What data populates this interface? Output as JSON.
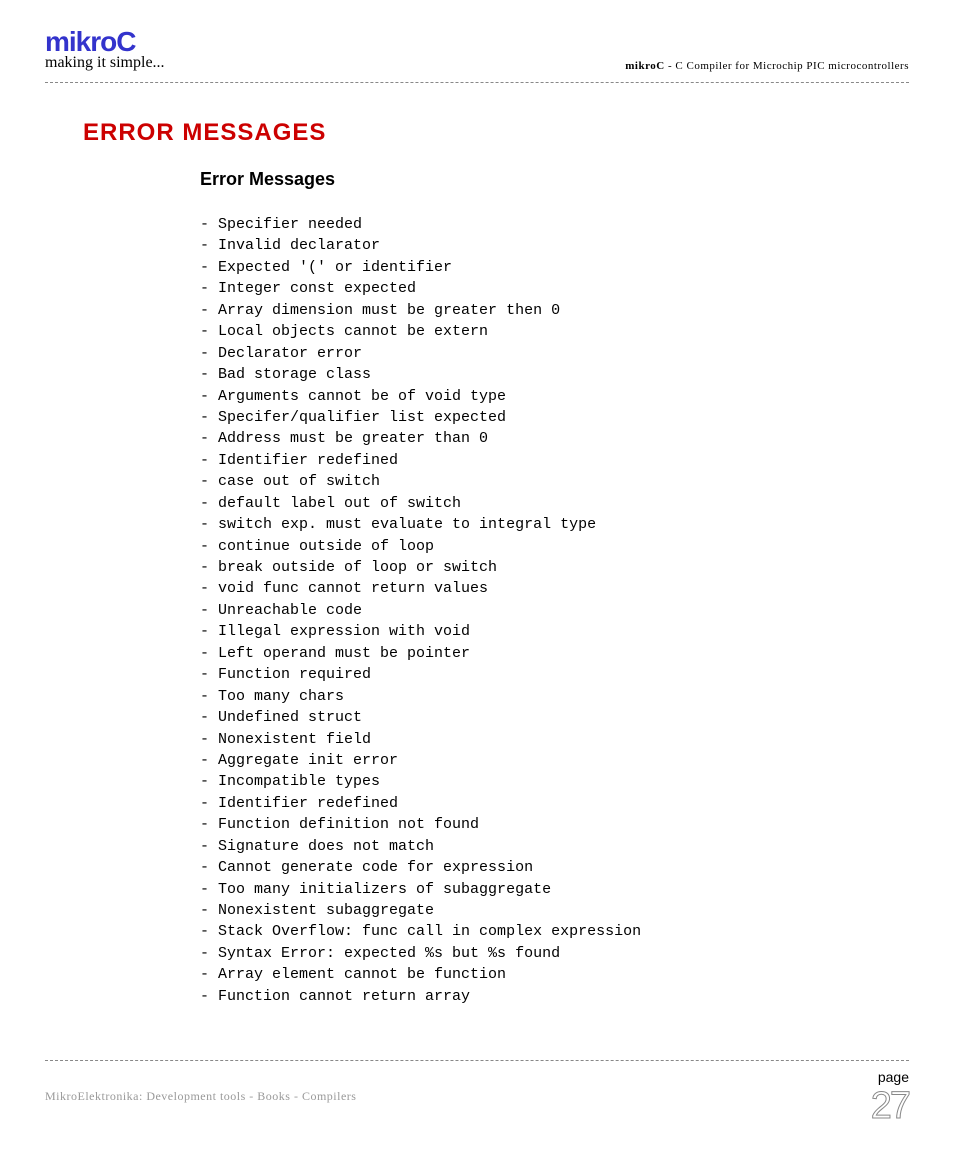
{
  "header": {
    "logo": "mikroC",
    "tagline": "making it simple...",
    "right_bold": "mikroC",
    "right_text": " - C Compiler for Microchip PIC microcontrollers"
  },
  "title": "ERROR MESSAGES",
  "subtitle": "Error Messages",
  "errors": [
    "Specifier needed",
    "Invalid declarator",
    "Expected '(' or identifier",
    "Integer const expected",
    "Array dimension must be greater then 0",
    "Local objects cannot be extern",
    "Declarator error",
    "Bad storage class",
    "Arguments cannot be of void type",
    "Specifer/qualifier list expected",
    "Address must be greater than 0",
    "Identifier redefined",
    "case out of switch",
    "default label out of switch",
    "switch exp. must evaluate to integral type",
    "continue outside of loop",
    "break outside of loop or switch",
    "void func cannot return values",
    "Unreachable code",
    "Illegal expression with void",
    "Left operand must be pointer",
    "Function required",
    "Too many chars",
    "Undefined struct",
    "Nonexistent field",
    "Aggregate init error",
    "Incompatible types",
    "Identifier redefined",
    "Function definition not found",
    "Signature does not match",
    "Cannot generate code for expression",
    "Too many initializers of subaggregate",
    "Nonexistent subaggregate",
    "Stack Overflow: func call in complex expression",
    "Syntax Error: expected %s but %s found",
    "Array element cannot be function",
    "Function cannot return array"
  ],
  "footer": {
    "left": "MikroElektronika: Development tools - Books - Compilers",
    "page_label": "page",
    "page_number": "27"
  },
  "colors": {
    "logo": "#3333cc",
    "title": "#cc0000",
    "footer_text": "#999999",
    "dash": "#888888",
    "background": "#ffffff"
  }
}
